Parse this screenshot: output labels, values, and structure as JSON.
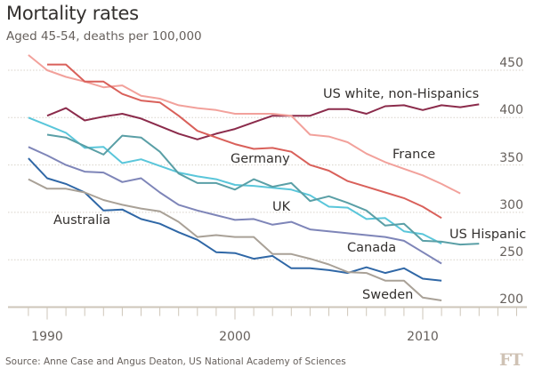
{
  "title": "Mortality rates",
  "subtitle": "Aged 45-54, deaths per 100,000",
  "source": "Source: Anne Case and Angus Deaton, US National Academy of Sciences",
  "logo": "FT",
  "chart_data": {
    "type": "line",
    "title": "Mortality rates",
    "subtitle": "Aged 45-54, deaths per 100,000",
    "xlabel": "",
    "ylabel": "",
    "xlim": [
      1989,
      2015
    ],
    "ylim": [
      200,
      450
    ],
    "x_ticks": [
      "1990",
      "2000",
      "2010"
    ],
    "y_ticks": [
      "450",
      "400",
      "350",
      "300",
      "250",
      "200"
    ],
    "grid": true,
    "legend": "direct labels",
    "series": [
      {
        "name": "US white, non-Hispanics",
        "color": "#8b2b4b",
        "x": [
          1990,
          1991,
          1992,
          1993,
          1994,
          1995,
          1996,
          1997,
          1998,
          1999,
          2000,
          2001,
          2002,
          2003,
          2004,
          2005,
          2006,
          2007,
          2008,
          2009,
          2010,
          2011,
          2012,
          2013
        ],
        "values": [
          402,
          410,
          397,
          401,
          404,
          399,
          391,
          383,
          377,
          383,
          388,
          395,
          402,
          402,
          402,
          409,
          409,
          404,
          412,
          413,
          408,
          413,
          411,
          414
        ]
      },
      {
        "name": "France",
        "color": "#f2a19b",
        "x": [
          1989,
          1990,
          1991,
          1992,
          1993,
          1994,
          1995,
          1996,
          1997,
          1998,
          1999,
          2000,
          2001,
          2002,
          2003,
          2004,
          2005,
          2006,
          2007,
          2008,
          2009,
          2010,
          2011,
          2012
        ],
        "values": [
          466,
          450,
          443,
          438,
          432,
          434,
          423,
          420,
          413,
          410,
          408,
          404,
          404,
          404,
          402,
          382,
          380,
          374,
          362,
          353,
          346,
          339,
          330,
          320
        ]
      },
      {
        "name": "Germany",
        "color": "#d9605a",
        "x": [
          1990,
          1991,
          1992,
          1993,
          1994,
          1995,
          1996,
          1997,
          1998,
          1999,
          2000,
          2001,
          2002,
          2003,
          2004,
          2005,
          2006,
          2007,
          2008,
          2009,
          2010,
          2011
        ],
        "values": [
          456,
          456,
          438,
          438,
          425,
          418,
          416,
          402,
          386,
          379,
          372,
          367,
          368,
          364,
          350,
          344,
          333,
          327,
          321,
          315,
          306,
          294
        ]
      },
      {
        "name": "UK",
        "color": "#5ac6da",
        "x": [
          1989,
          1990,
          1991,
          1992,
          1993,
          1994,
          1995,
          1996,
          1997,
          1998,
          1999,
          2000,
          2001,
          2002,
          2003,
          2004,
          2005,
          2006,
          2007,
          2008,
          2009,
          2010,
          2011
        ],
        "values": [
          400,
          392,
          384,
          368,
          369,
          352,
          356,
          349,
          342,
          338,
          335,
          329,
          328,
          326,
          324,
          318,
          306,
          305,
          293,
          294,
          280,
          277,
          267
        ]
      },
      {
        "name": "US Hispanic",
        "color": "#5a9fa6",
        "x": [
          1990,
          1991,
          1992,
          1993,
          1994,
          1995,
          1996,
          1997,
          1998,
          1999,
          2000,
          2001,
          2002,
          2003,
          2004,
          2005,
          2006,
          2007,
          2008,
          2009,
          2010,
          2011,
          2012,
          2013
        ],
        "values": [
          382,
          379,
          370,
          361,
          381,
          379,
          364,
          341,
          331,
          331,
          324,
          335,
          327,
          331,
          312,
          317,
          310,
          302,
          286,
          288,
          270,
          269,
          266,
          267
        ]
      },
      {
        "name": "Canada",
        "color": "#7e85b8",
        "x": [
          1989,
          1990,
          1991,
          1992,
          1993,
          1994,
          1995,
          1996,
          1997,
          1998,
          1999,
          2000,
          2001,
          2002,
          2003,
          2004,
          2005,
          2006,
          2007,
          2008,
          2009,
          2010,
          2011
        ],
        "values": [
          369,
          360,
          350,
          343,
          342,
          332,
          336,
          321,
          308,
          302,
          297,
          292,
          293,
          287,
          290,
          282,
          280,
          278,
          276,
          274,
          270,
          258,
          246
        ]
      },
      {
        "name": "Australia",
        "color": "#2f67a6",
        "x": [
          1989,
          1990,
          1991,
          1992,
          1993,
          1994,
          1995,
          1996,
          1997,
          1998,
          1999,
          2000,
          2001,
          2002,
          2003,
          2004,
          2005,
          2006,
          2007,
          2008,
          2009,
          2010,
          2011
        ],
        "values": [
          357,
          336,
          330,
          321,
          302,
          303,
          293,
          288,
          279,
          271,
          258,
          257,
          251,
          254,
          241,
          241,
          239,
          236,
          242,
          236,
          241,
          230,
          228
        ]
      },
      {
        "name": "Sweden",
        "color": "#a9a197",
        "x": [
          1989,
          1990,
          1991,
          1992,
          1993,
          1994,
          1995,
          1996,
          1997,
          1998,
          1999,
          2000,
          2001,
          2002,
          2003,
          2004,
          2005,
          2006,
          2007,
          2008,
          2009,
          2010,
          2011
        ],
        "values": [
          335,
          325,
          325,
          321,
          313,
          308,
          304,
          301,
          290,
          274,
          276,
          274,
          274,
          256,
          256,
          251,
          245,
          237,
          236,
          228,
          228,
          210,
          207
        ]
      }
    ]
  }
}
